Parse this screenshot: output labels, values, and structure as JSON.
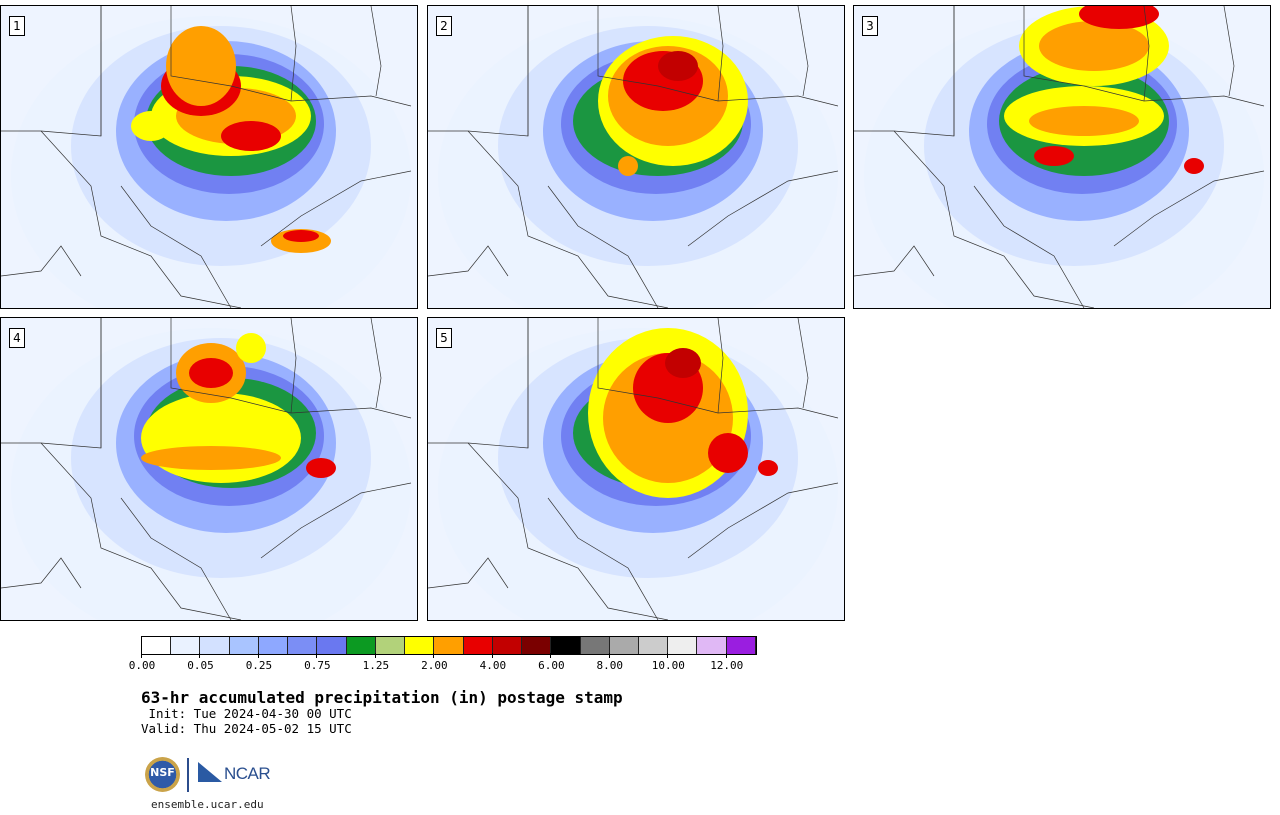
{
  "panels": [
    {
      "label": "1"
    },
    {
      "label": "2"
    },
    {
      "label": "3"
    },
    {
      "label": "4"
    },
    {
      "label": "5"
    }
  ],
  "colorbar": {
    "colors": [
      "#ffffff",
      "#eaf2ff",
      "#d3e1ff",
      "#a9c4ff",
      "#8ea8ff",
      "#7b8ef5",
      "#6a78f0",
      "#0c9a22",
      "#b2d27a",
      "#ffff00",
      "#ff9f00",
      "#e80000",
      "#c20000",
      "#7a0000",
      "#000000",
      "#777777",
      "#aaaaaa",
      "#cccccc",
      "#eeeeee",
      "#e0b8f5",
      "#9a1ee0"
    ],
    "tick_labels": [
      "0.00",
      "0.05",
      "0.25",
      "0.75",
      "1.25",
      "2.00",
      "4.00",
      "6.00",
      "8.00",
      "10.00",
      "12.00"
    ]
  },
  "title": "63-hr accumulated precipitation (in) postage stamp",
  "init": " Init: Tue 2024-04-30 00 UTC",
  "valid": "Valid: Thu 2024-05-02 15 UTC",
  "logos": {
    "nsf": "NSF",
    "ncar": "NCAR"
  },
  "site": "ensemble.ucar.edu"
}
